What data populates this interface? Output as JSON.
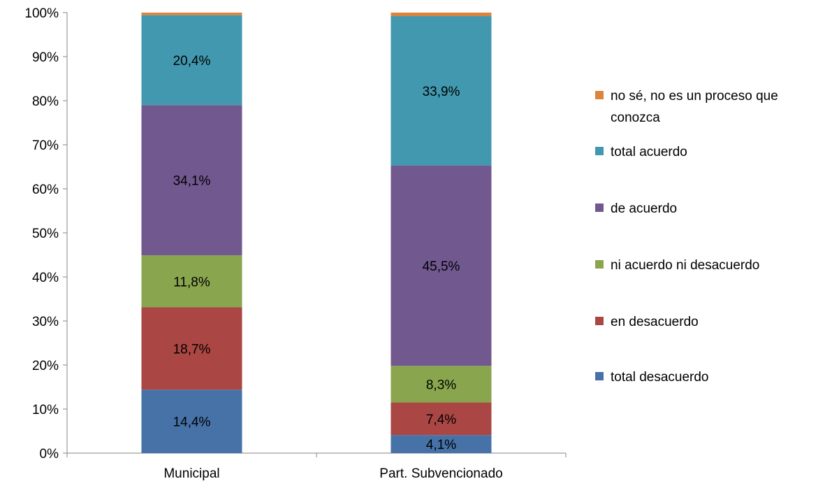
{
  "chart_data": {
    "type": "bar",
    "stacked": true,
    "percent": true,
    "categories": [
      "Municipal",
      "Part. Subvencionado"
    ],
    "series": [
      {
        "name": "total desacuerdo",
        "color": "#4672A8",
        "values": [
          14.4,
          4.1
        ],
        "labels": [
          "14,4%",
          "4,1%"
        ]
      },
      {
        "name": "en desacuerdo",
        "color": "#AA4643",
        "values": [
          18.7,
          7.4
        ],
        "labels": [
          "18,7%",
          "7,4%"
        ]
      },
      {
        "name": "ni acuerdo ni desacuerdo",
        "color": "#89A54E",
        "values": [
          11.8,
          8.3
        ],
        "labels": [
          "11,8%",
          "8,3%"
        ]
      },
      {
        "name": "de acuerdo",
        "color": "#71588F",
        "values": [
          34.1,
          45.5
        ],
        "labels": [
          "34,1%",
          "45,5%"
        ]
      },
      {
        "name": "total acuerdo",
        "color": "#4198AF",
        "values": [
          20.4,
          33.9
        ],
        "labels": [
          "20,4%",
          "33,9%"
        ]
      },
      {
        "name": "no sé, no es un proceso que conozca",
        "color": "#DB843D",
        "values": [
          0.6,
          0.8
        ],
        "labels": [
          "",
          ""
        ]
      }
    ],
    "y_ticks": [
      "0%",
      "10%",
      "20%",
      "30%",
      "40%",
      "50%",
      "60%",
      "70%",
      "80%",
      "90%",
      "100%"
    ],
    "ylim": [
      0,
      100
    ],
    "legend_position": "right",
    "grid": false,
    "title": "",
    "xlabel": "",
    "ylabel": ""
  }
}
